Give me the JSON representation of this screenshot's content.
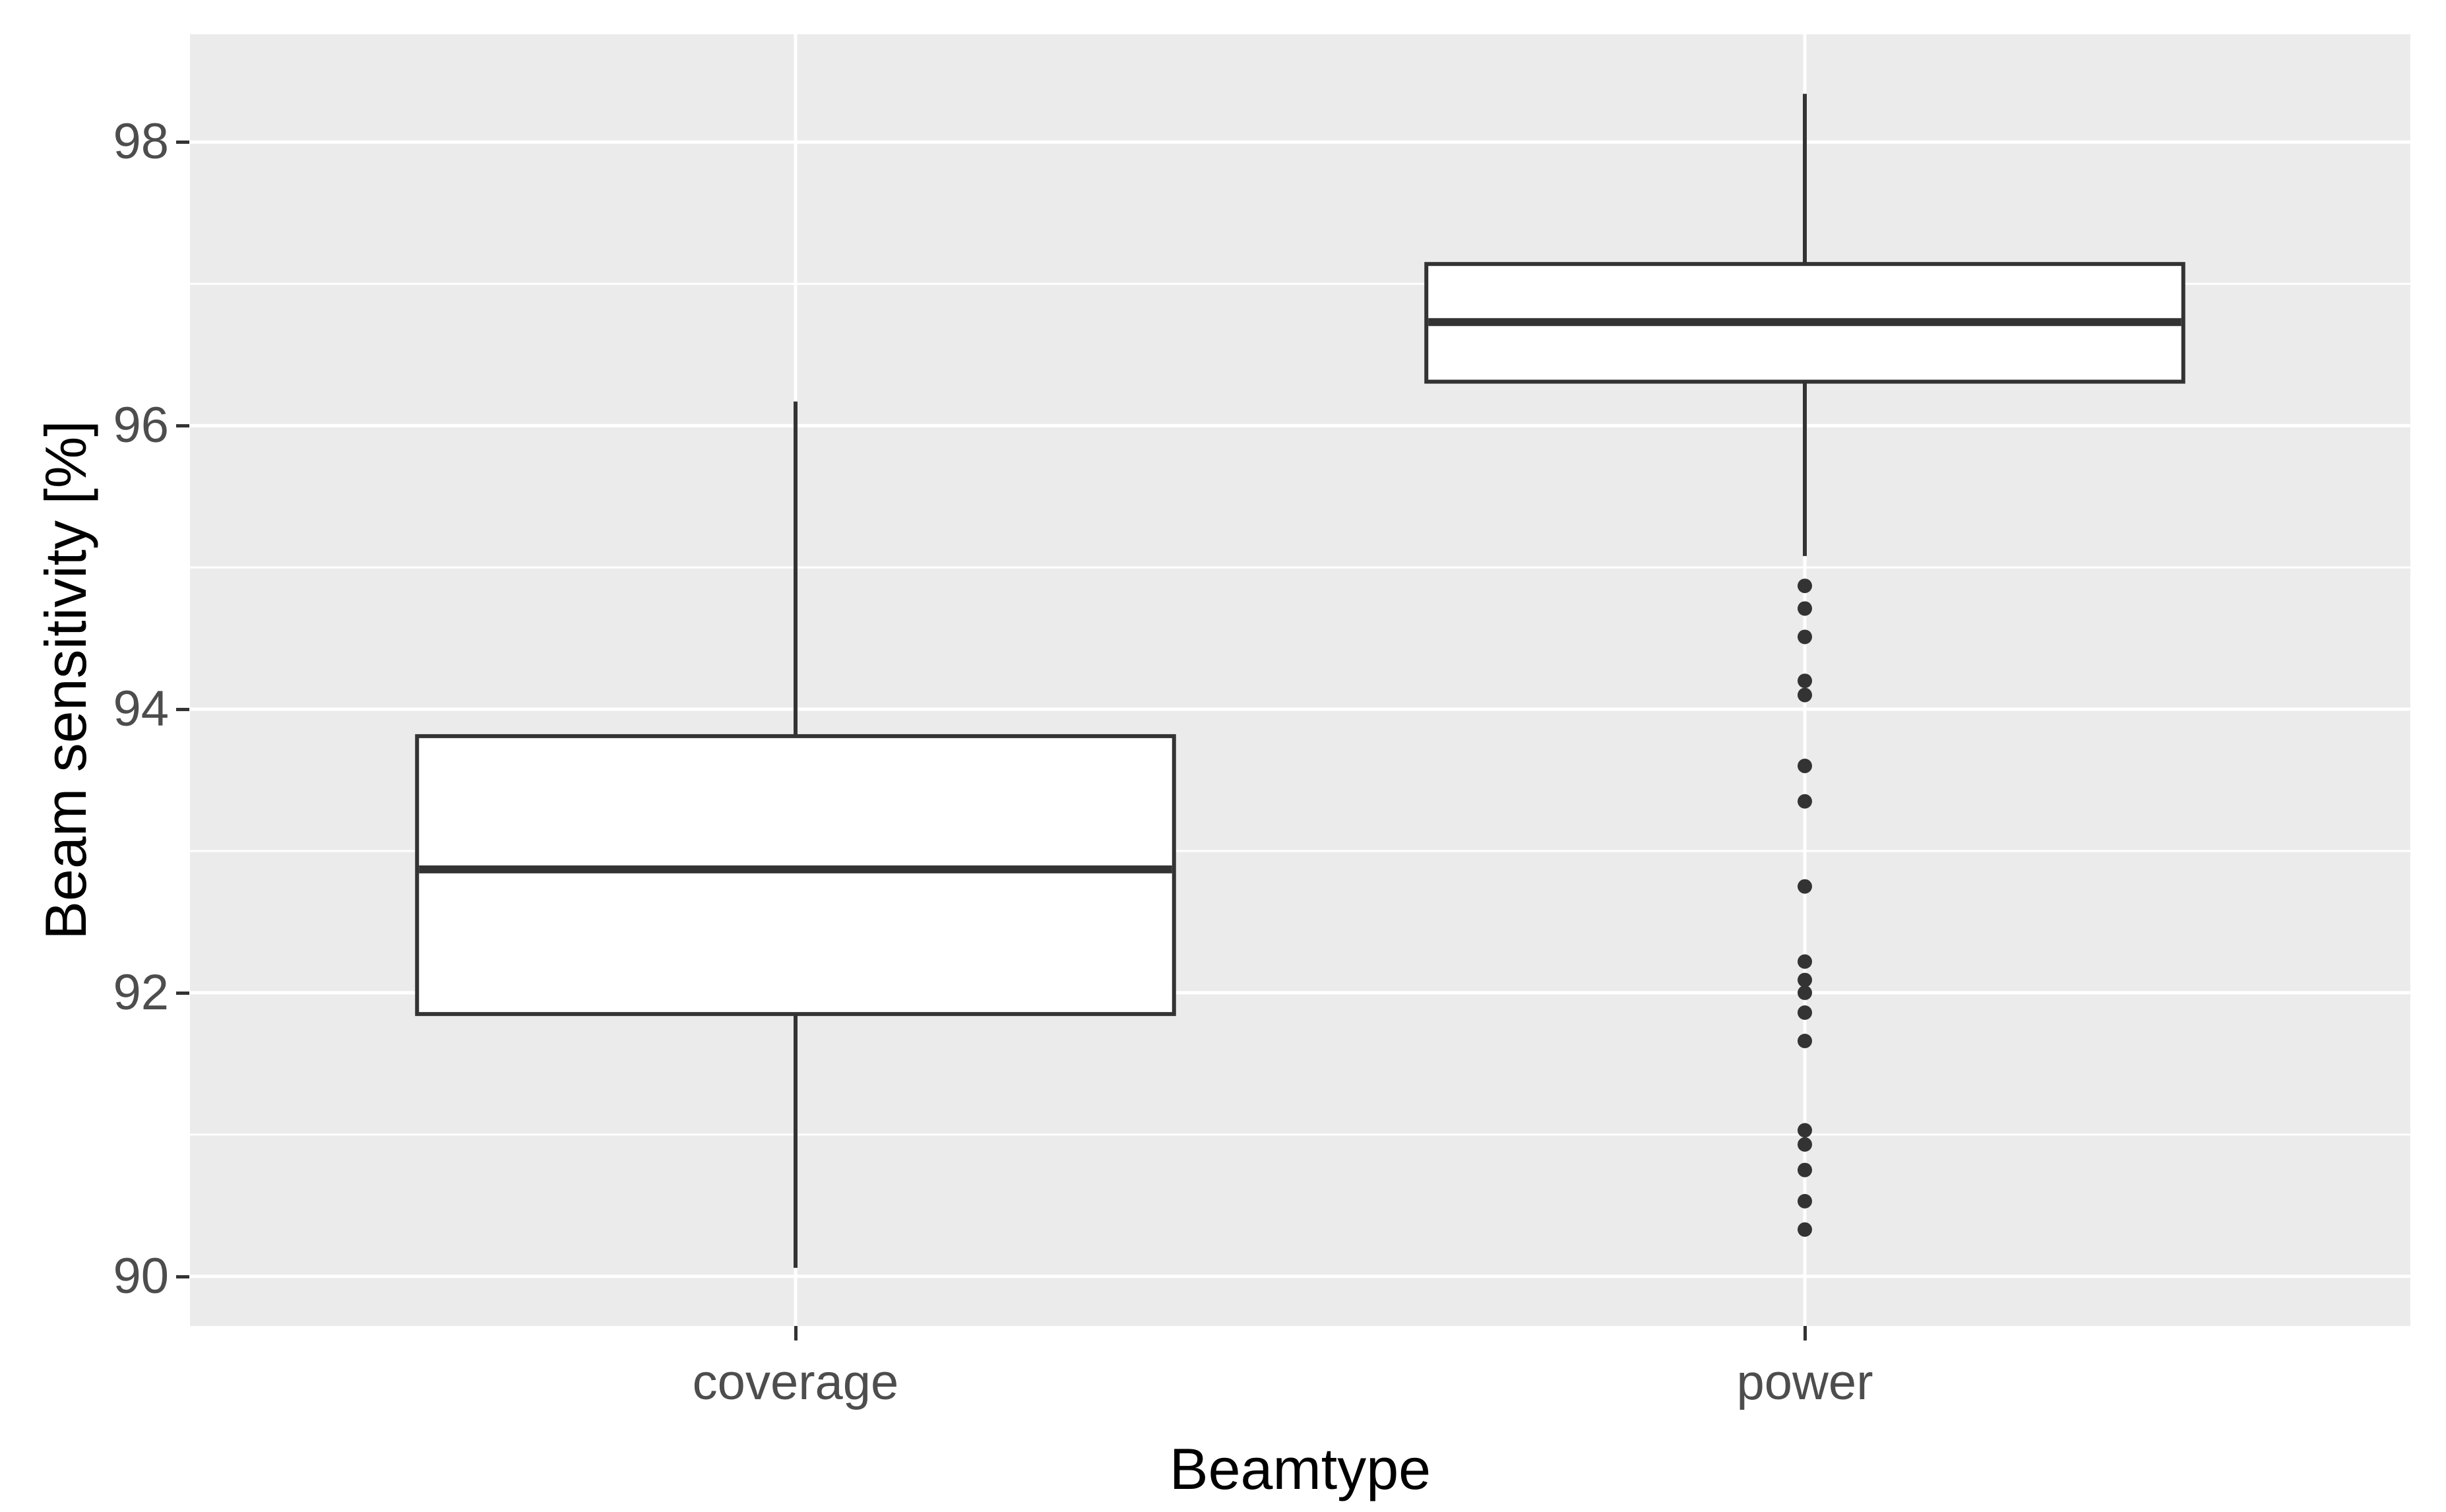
{
  "chart_data": {
    "type": "boxplot",
    "title": "",
    "xlabel": "Beamtype",
    "ylabel": "Beam sensitivity [%]",
    "categories": [
      "coverage",
      "power"
    ],
    "y_ticks": [
      90,
      92,
      94,
      96,
      98
    ],
    "y_tick_labels": [
      "90",
      "92",
      "94",
      "96",
      "98"
    ],
    "ylim": [
      89.65,
      98.76
    ],
    "grid": "white major and minor horizontal lines on gray panel, vertical line at each category",
    "legend_position": "none",
    "series": [
      {
        "category": "coverage",
        "whisker_low": 90.06,
        "q1": 91.85,
        "median": 92.87,
        "q3": 93.81,
        "whisker_high": 96.17,
        "outliers": []
      },
      {
        "category": "power",
        "whisker_low": 95.08,
        "q1": 96.31,
        "median": 96.73,
        "q3": 97.14,
        "whisker_high": 98.34,
        "outliers": [
          94.87,
          94.71,
          94.51,
          94.2,
          94.1,
          93.6,
          93.35,
          92.75,
          92.22,
          92.09,
          92.0,
          91.86,
          91.66,
          91.03,
          90.93,
          90.75,
          90.53,
          90.33
        ]
      }
    ]
  },
  "style": {
    "panel_bg": "#EBEBEB",
    "grid_color": "#FFFFFF",
    "box_stroke": "#333333",
    "box_fill": "#FFFFFF",
    "outlier_color": "#333333",
    "tick_mark_color": "#333333",
    "tick_label_color": "#4D4D4D",
    "axis_title_color": "#000000"
  }
}
